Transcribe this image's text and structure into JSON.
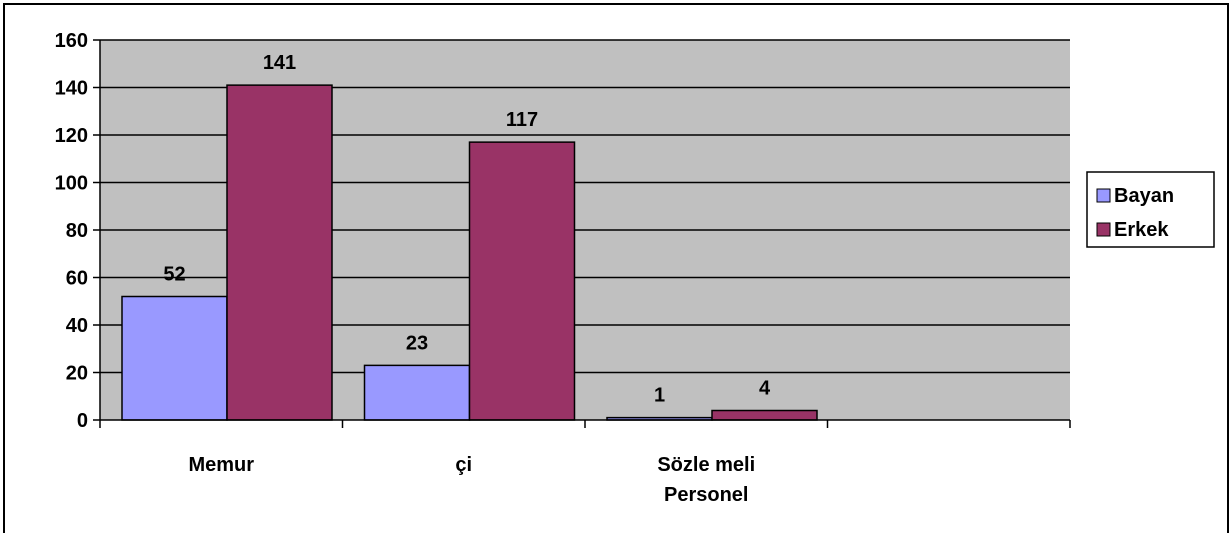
{
  "chart_data": {
    "type": "bar",
    "categories": [
      "Memur",
      "çi",
      [
        "Sözle  meli",
        "Personel"
      ],
      ""
    ],
    "series": [
      {
        "name": "Bayan",
        "values": [
          52,
          23,
          1,
          null
        ],
        "color": "#9999ff"
      },
      {
        "name": "Erkek",
        "values": [
          141,
          117,
          4,
          null
        ],
        "color": "#993366"
      }
    ],
    "y_ticks": [
      "0",
      "20",
      "40",
      "60",
      "80",
      "100",
      "120",
      "140",
      "160"
    ],
    "ylim": [
      0,
      160
    ],
    "grid": true,
    "plot_background": "#c0c0c0",
    "legend_position": "right"
  }
}
